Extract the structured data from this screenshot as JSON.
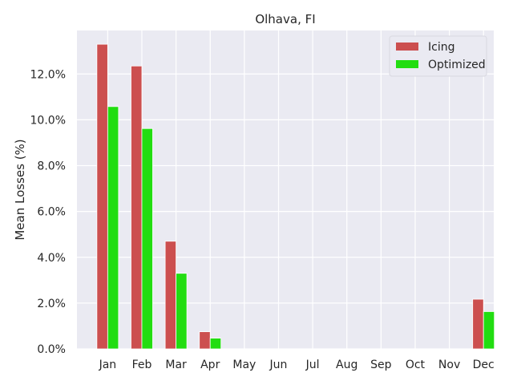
{
  "chart_data": {
    "type": "bar",
    "title": "Olhava, FI",
    "xlabel": "",
    "ylabel": "Mean Losses (%)",
    "categories": [
      "Jan",
      "Feb",
      "Mar",
      "Apr",
      "May",
      "Jun",
      "Jul",
      "Aug",
      "Sep",
      "Oct",
      "Nov",
      "Dec"
    ],
    "series": [
      {
        "name": "Icing",
        "color": "#cc4f4f",
        "values": [
          13.3,
          12.35,
          4.7,
          0.75,
          0,
          0,
          0,
          0,
          0,
          0,
          0,
          2.17
        ]
      },
      {
        "name": "Optimized",
        "color": "#22dd11",
        "values": [
          10.58,
          9.62,
          3.3,
          0.47,
          0,
          0,
          0,
          0,
          0,
          0,
          0,
          1.63
        ]
      }
    ],
    "ylim": [
      0,
      13.9
    ],
    "yticks": [
      0,
      2,
      4,
      6,
      8,
      10,
      12
    ],
    "ytick_labels": [
      "0.0%",
      "2.0%",
      "4.0%",
      "6.0%",
      "8.0%",
      "10.0%",
      "12.0%"
    ],
    "grid": true,
    "legend_position": "top-right",
    "background_color": "#eaeaf2"
  }
}
